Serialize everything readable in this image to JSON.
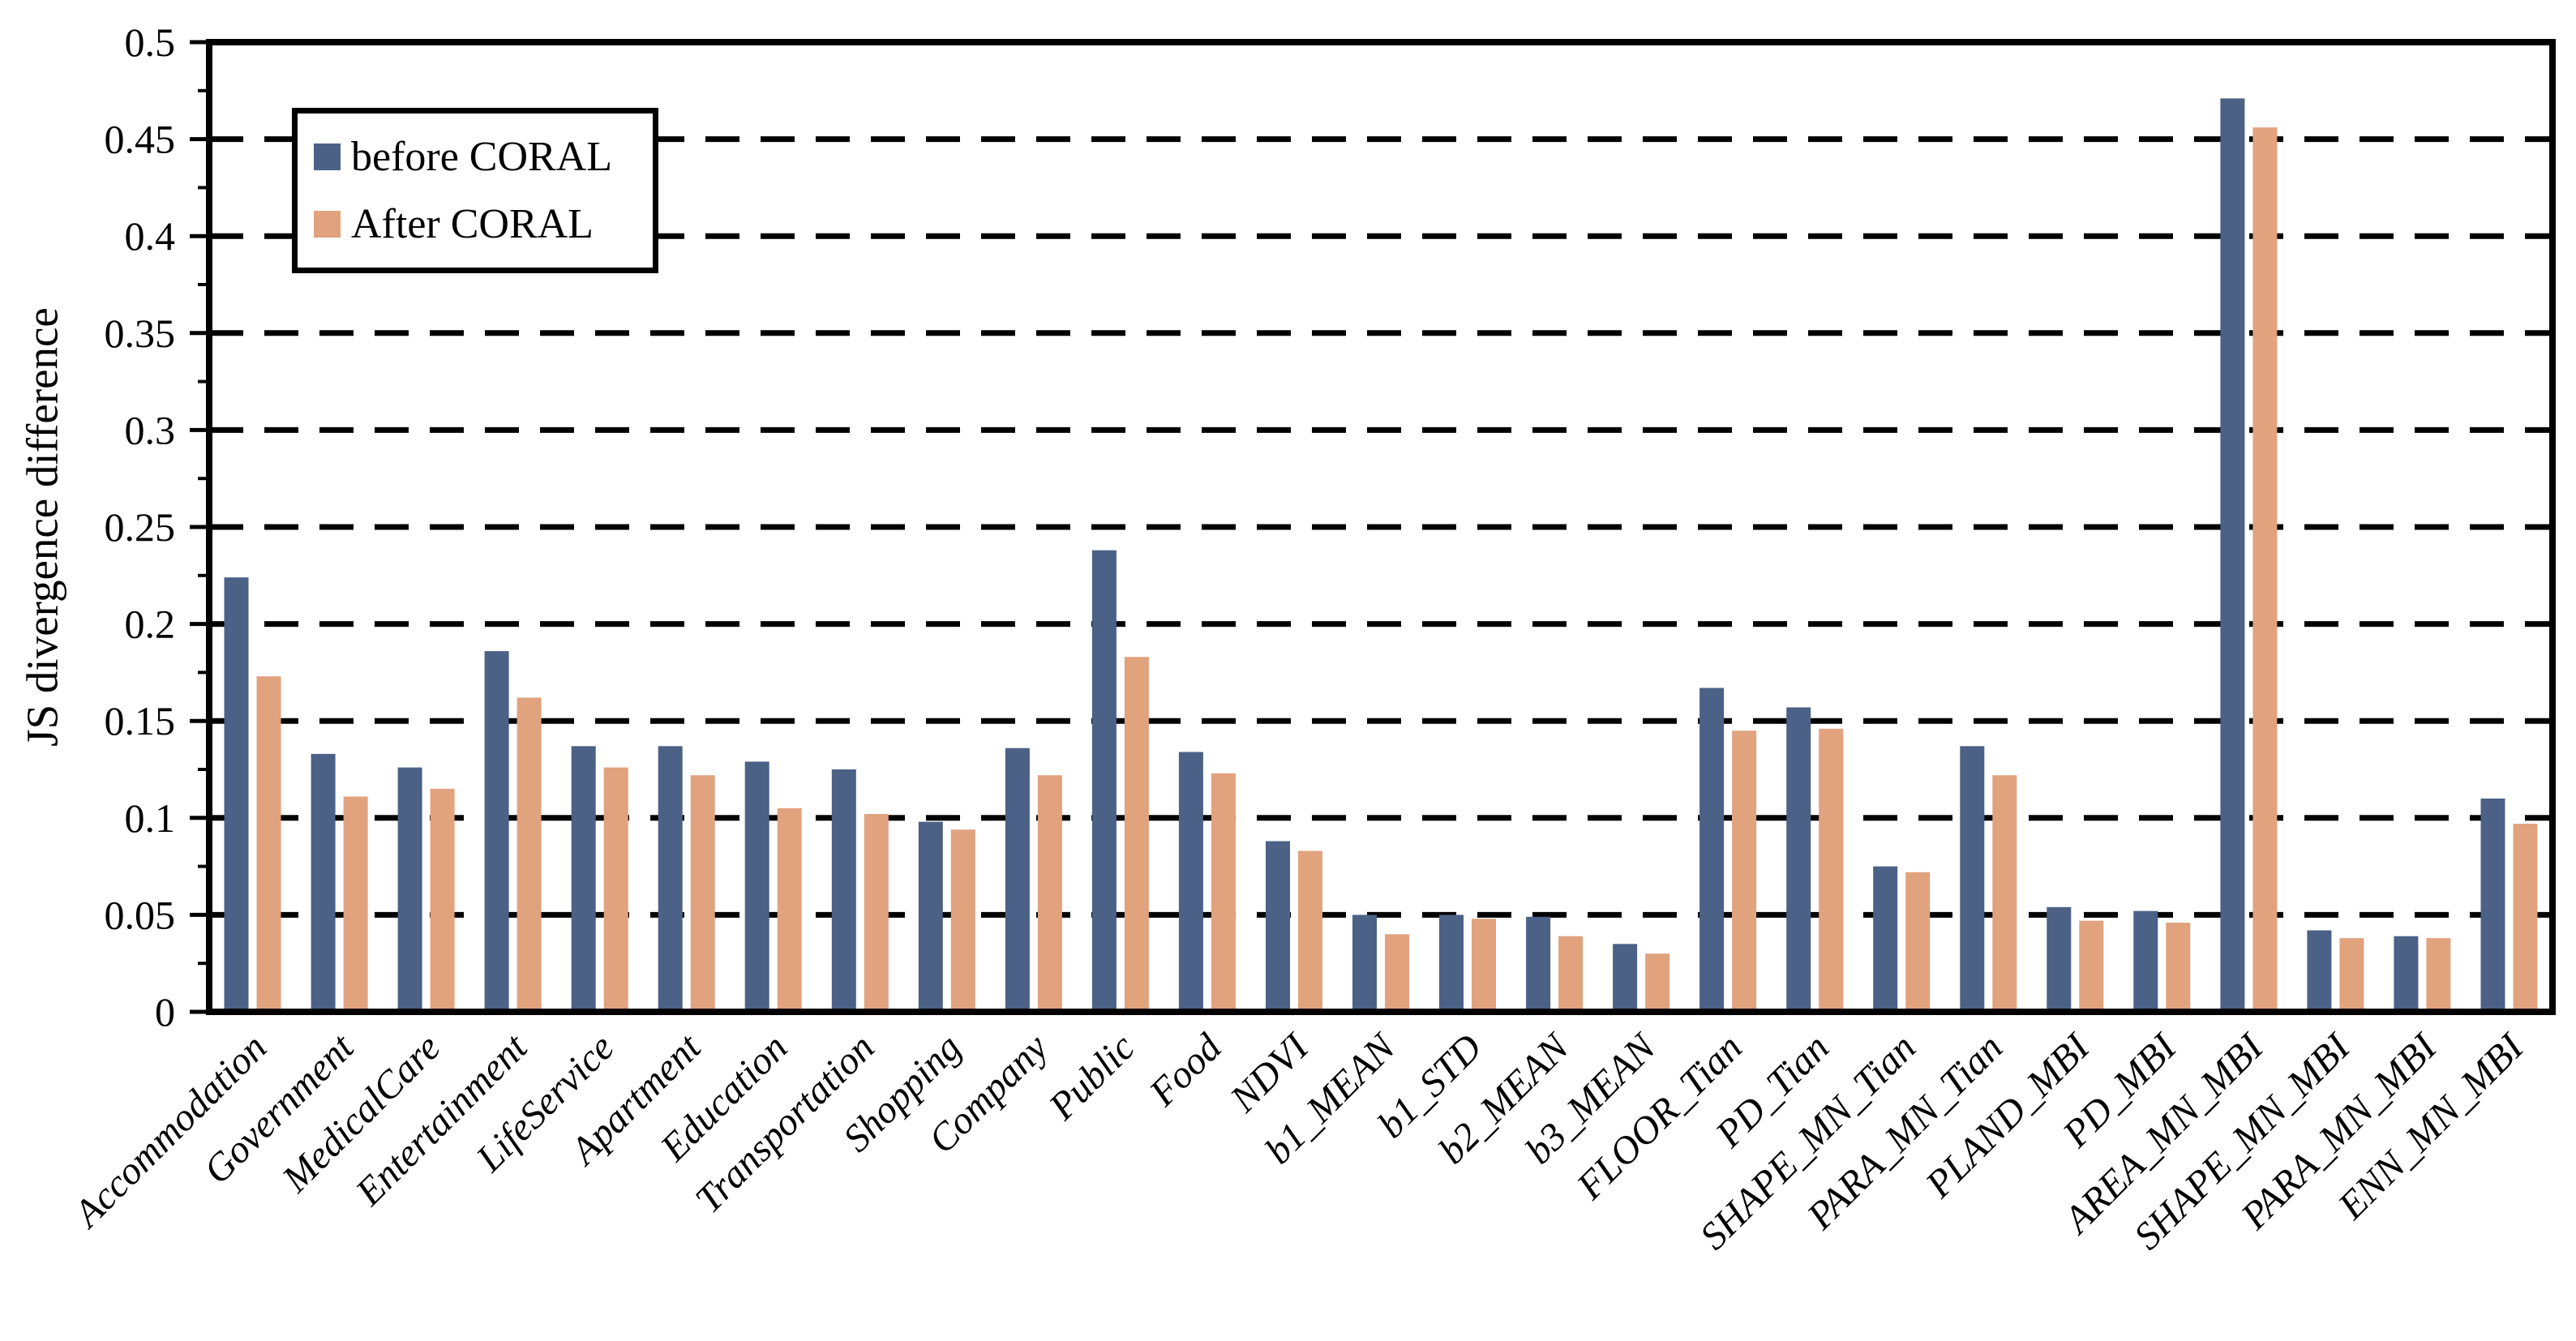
{
  "chart_data": {
    "type": "bar",
    "title": "",
    "xlabel": "",
    "ylabel": "JS divergence difference",
    "ylim": [
      0,
      0.5
    ],
    "ytick_step": 0.05,
    "ytick_labels": [
      "0",
      "0.05",
      "0.1",
      "0.15",
      "0.2",
      "0.25",
      "0.3",
      "0.35",
      "0.4",
      "0.45",
      "0.5"
    ],
    "grid": "horizontal dashed black lines at every 0.05, drawn behind bars",
    "legend_position": "inside upper-left, black-bordered box",
    "categories": [
      "Accommodation",
      "Government",
      "MedicalCare",
      "Entertainment",
      "LifeService",
      "Apartment",
      "Education",
      "Transportation",
      "Shopping",
      "Company",
      "Public",
      "Food",
      "NDVI",
      "b1_MEAN",
      "b1_STD",
      "b2_MEAN",
      "b3_MEAN",
      "FLOOR_Tian",
      "PD_Tian",
      "SHAPE_MN_Tian",
      "PARA_MN_Tian",
      "PLAND_MBI",
      "PD_MBI",
      "AREA_MN_MBI",
      "SHAPE_MN_MBI",
      "PARA_MN_MBI",
      "ENN_MN_MBI"
    ],
    "series": [
      {
        "name": "before CORAL",
        "color": "#4B6186",
        "values": [
          0.224,
          0.133,
          0.126,
          0.186,
          0.137,
          0.137,
          0.129,
          0.125,
          0.098,
          0.136,
          0.238,
          0.134,
          0.088,
          0.05,
          0.05,
          0.049,
          0.035,
          0.167,
          0.157,
          0.075,
          0.137,
          0.054,
          0.052,
          0.471,
          0.042,
          0.039,
          0.11
        ]
      },
      {
        "name": "After CORAL",
        "color": "#E1A27E",
        "values": [
          0.173,
          0.111,
          0.115,
          0.162,
          0.126,
          0.122,
          0.105,
          0.102,
          0.094,
          0.122,
          0.183,
          0.123,
          0.083,
          0.04,
          0.048,
          0.039,
          0.03,
          0.145,
          0.146,
          0.072,
          0.122,
          0.047,
          0.046,
          0.456,
          0.038,
          0.038,
          0.097
        ]
      }
    ]
  }
}
